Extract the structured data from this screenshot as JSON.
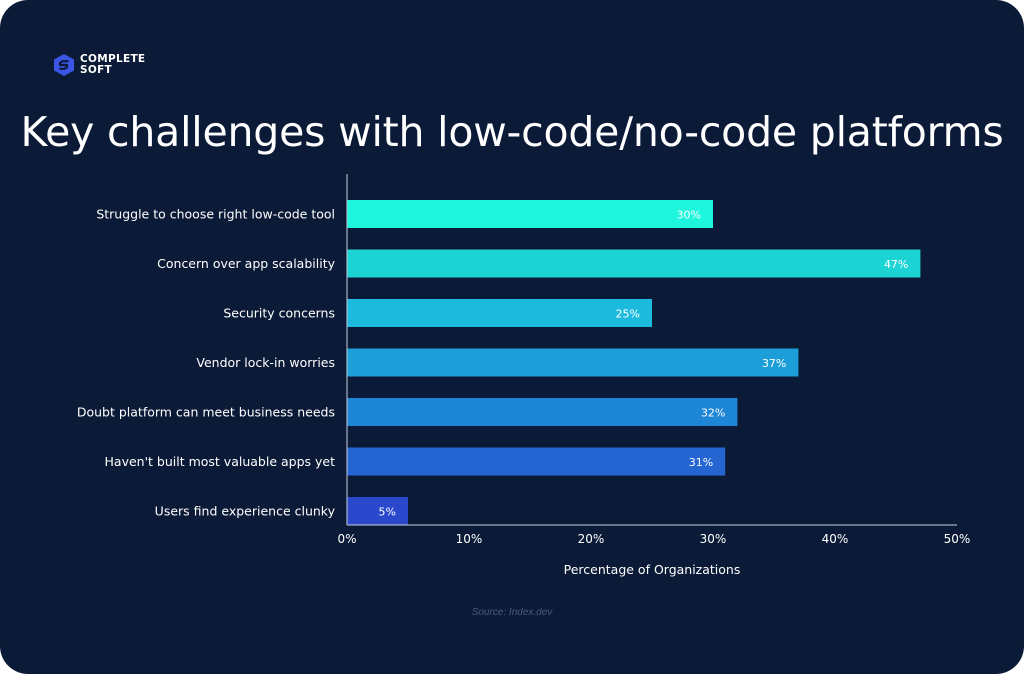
{
  "brand": {
    "line1": "COMPLETE",
    "line2": "SOFT"
  },
  "title": "Key challenges with low-code/no-code platforms",
  "source": "Source: Index.dev",
  "colors": {
    "background": "#0b1a37",
    "axis": "#c9d0dc",
    "bars": [
      "#1df5dc",
      "#1cd4d4",
      "#1cbadc",
      "#1c9fd8",
      "#1e86d6",
      "#2565d2",
      "#2a48cc"
    ]
  },
  "chart_data": {
    "type": "bar",
    "orientation": "horizontal",
    "categories": [
      "Struggle to choose right low-code tool",
      "Concern over app scalability",
      "Security concerns",
      "Vendor lock-in worries",
      "Doubt platform can meet business needs",
      "Haven't built most valuable apps yet",
      "Users find experience clunky"
    ],
    "values": [
      30,
      47,
      25,
      37,
      32,
      31,
      5
    ],
    "value_labels": [
      "30%",
      "47%",
      "25%",
      "37%",
      "32%",
      "31%",
      "5%"
    ],
    "xlabel": "Percentage of Organizations",
    "ylabel": "",
    "xlim": [
      0,
      50
    ],
    "xticks": [
      0,
      10,
      20,
      30,
      40,
      50
    ],
    "xtick_labels": [
      "0%",
      "10%",
      "20%",
      "30%",
      "40%",
      "50%"
    ],
    "grid": false,
    "legend": "none"
  }
}
